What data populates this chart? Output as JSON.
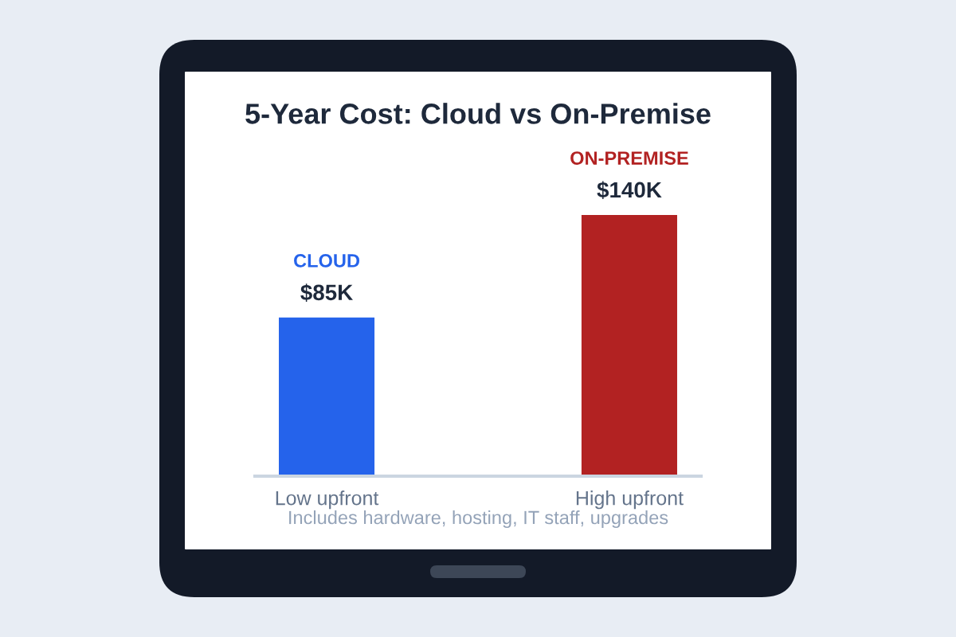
{
  "chart_data": {
    "type": "bar",
    "title": "5-Year Cost: Cloud vs On-Premise",
    "categories": [
      "Low upfront",
      "High upfront"
    ],
    "series": [
      {
        "name": "CLOUD",
        "color": "#2563eb",
        "values": [
          85,
          null
        ],
        "value_labels": [
          "$85K",
          null
        ]
      },
      {
        "name": "ON-PREMISE",
        "color": "#b22222",
        "values": [
          null,
          140
        ],
        "value_labels": [
          null,
          "$140K"
        ]
      }
    ],
    "annotations": [
      "Includes hardware, hosting, IT staff, upgrades"
    ],
    "tick_labels": "x"
  }
}
